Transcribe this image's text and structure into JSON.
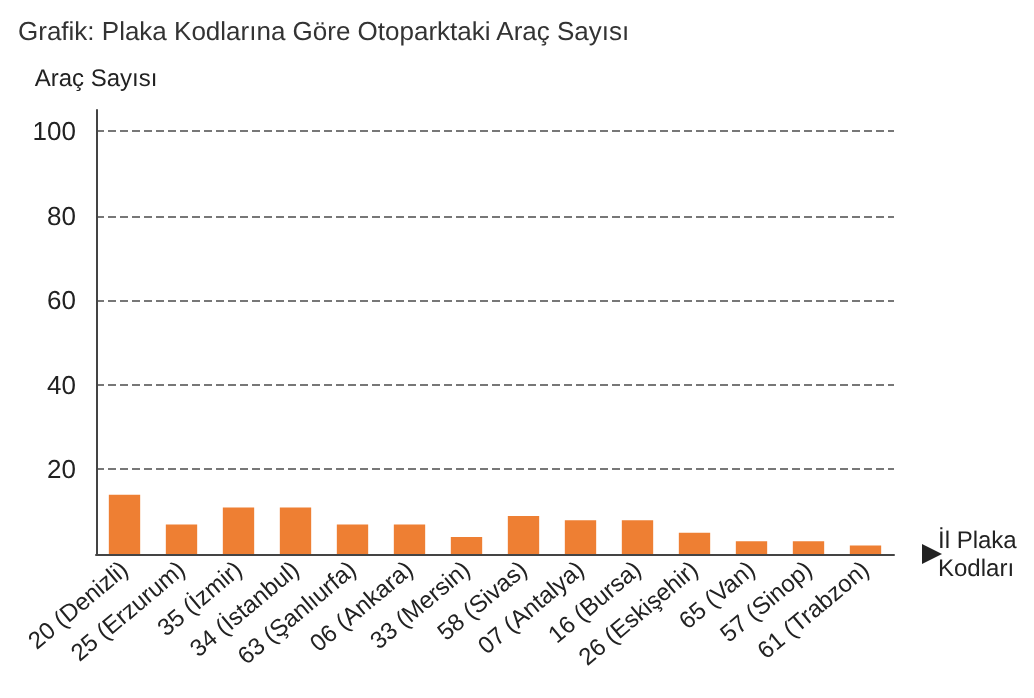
{
  "chart_data": {
    "type": "bar",
    "title": "Grafik: Plaka Kodlarına Göre Otoparktaki Araç Sayısı",
    "xlabel": "İl Plaka\nKodları",
    "ylabel": "Araç Sayısı",
    "categories": [
      "20 (Denizli)",
      "25 (Erzurum)",
      "35 (İzmir)",
      "34 (İstanbul)",
      "63 (Şanlıurfa)",
      "06 (Ankara)",
      "33 (Mersin)",
      "58 (Sivas)",
      "07 (Antalya)",
      "16 (Bursa)",
      "26 (Eskişehir)",
      "65 (Van)",
      "57 (Sinop)",
      "61 (Trabzon)"
    ],
    "values": [
      14,
      7,
      11,
      11,
      7,
      7,
      4,
      9,
      8,
      8,
      5,
      3,
      3,
      2
    ],
    "color": "#ee7f33",
    "ylim": [
      0,
      105
    ],
    "yticks": [
      20,
      40,
      60,
      80,
      100
    ],
    "grid": "y"
  }
}
